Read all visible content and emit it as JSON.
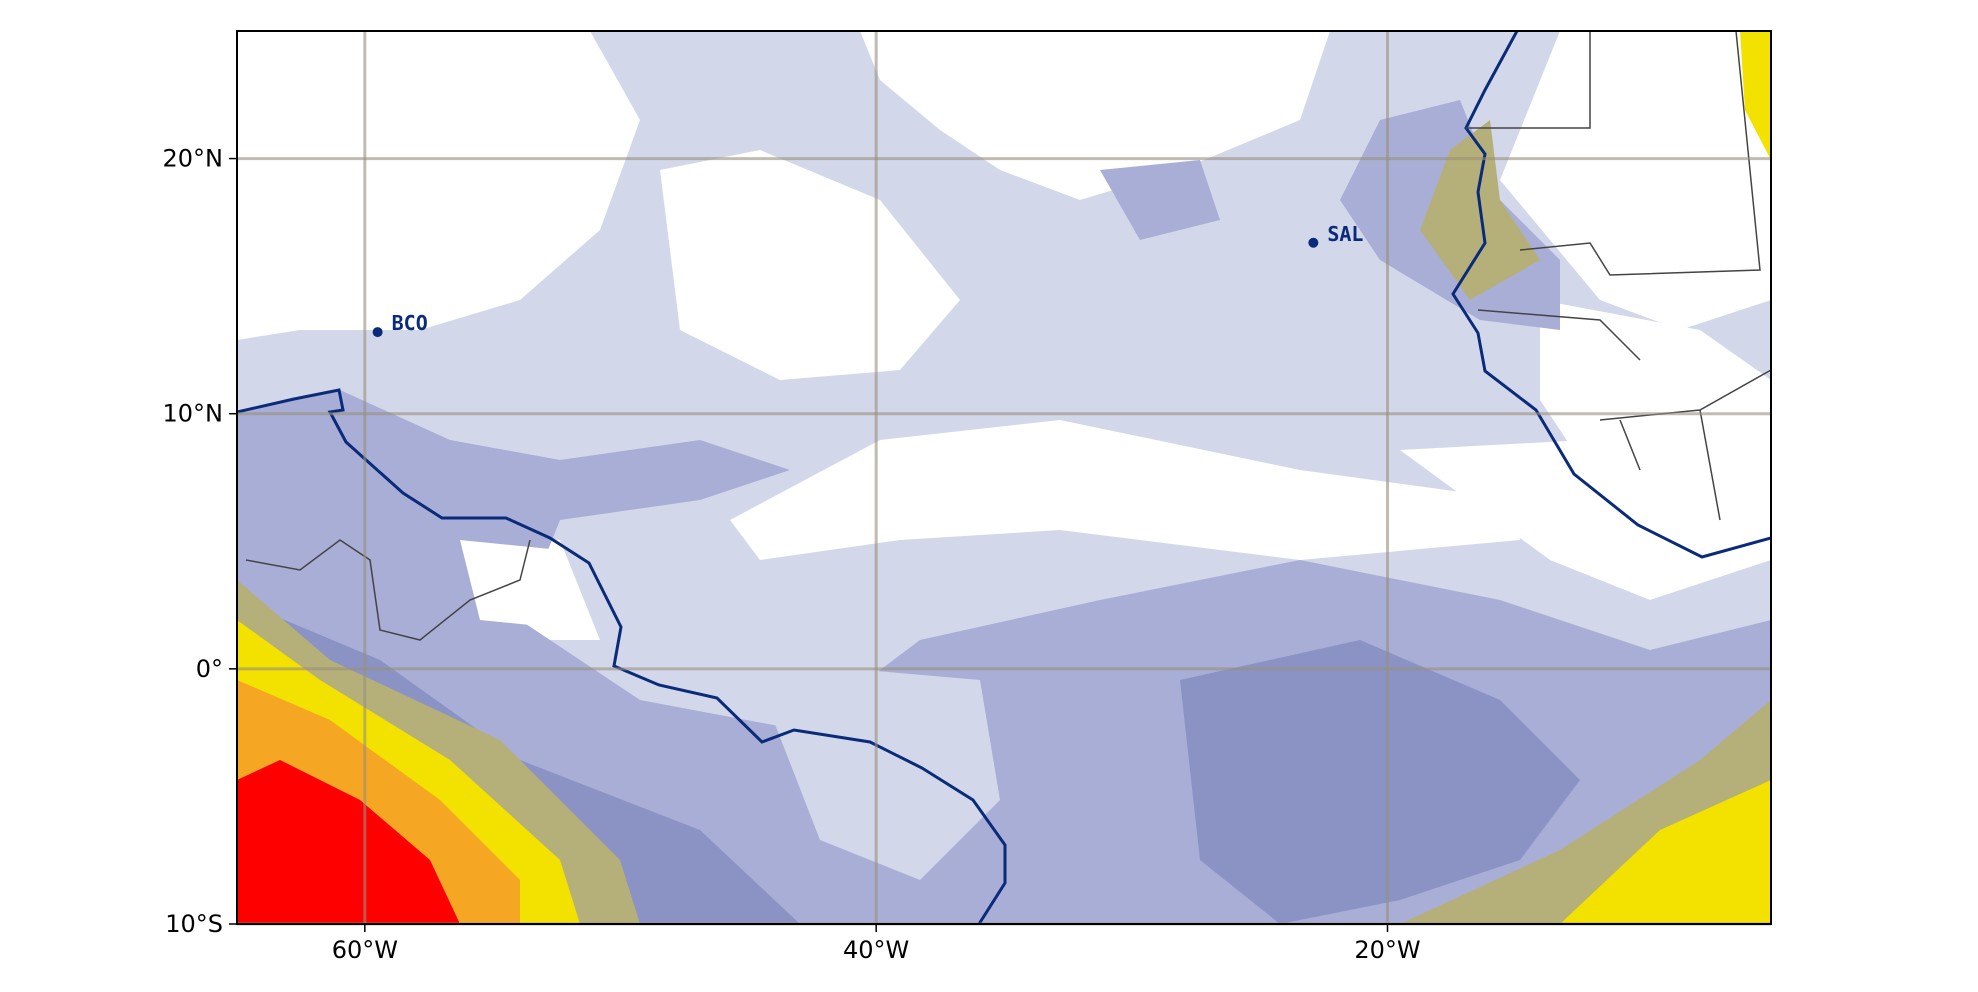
{
  "map": {
    "lonlim": [
      -65,
      -5
    ],
    "latlim": [
      -10,
      25
    ],
    "xticks": [
      {
        "value": -60,
        "label": "60°W"
      },
      {
        "value": -40,
        "label": "40°W"
      },
      {
        "value": -20,
        "label": "20°W"
      }
    ],
    "yticks": [
      {
        "value": -10,
        "label": "10°S"
      },
      {
        "value": 0,
        "label": "0°"
      },
      {
        "value": 10,
        "label": "10°N"
      },
      {
        "value": 20,
        "label": "20°N"
      }
    ],
    "grid": true,
    "stations": [
      {
        "label": "BCO",
        "lon": -59.5,
        "lat": 13.2
      },
      {
        "label": "SAL",
        "lon": -22.9,
        "lat": 16.7
      }
    ],
    "station_color": "#0a2a7a"
  }
}
